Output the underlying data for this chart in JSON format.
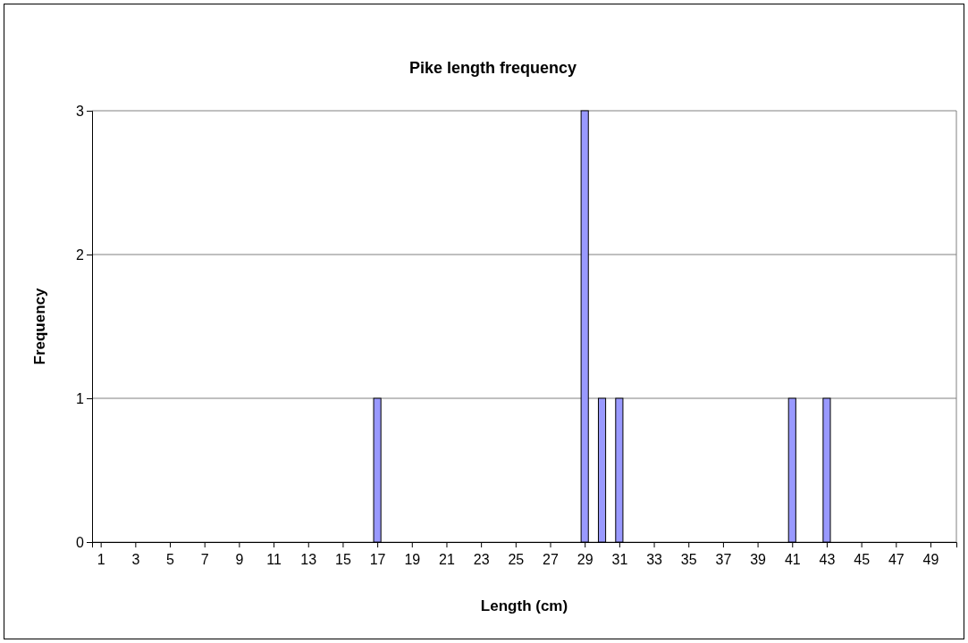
{
  "chart_data": {
    "type": "bar",
    "title": "Pike length frequency",
    "xlabel": "Length (cm)",
    "ylabel": "Frequency",
    "x": [
      17,
      29,
      30,
      31,
      41,
      43
    ],
    "values": [
      1,
      3,
      1,
      1,
      1,
      1
    ],
    "color": "#9999ff",
    "xlim": [
      0.5,
      50.5
    ],
    "xticks": [
      1,
      3,
      5,
      7,
      9,
      11,
      13,
      15,
      17,
      19,
      21,
      23,
      25,
      27,
      29,
      31,
      33,
      35,
      37,
      39,
      41,
      43,
      45,
      47,
      49
    ],
    "ylim": [
      0,
      3
    ],
    "yticks": [
      0,
      1,
      2,
      3
    ],
    "grid": "y"
  }
}
